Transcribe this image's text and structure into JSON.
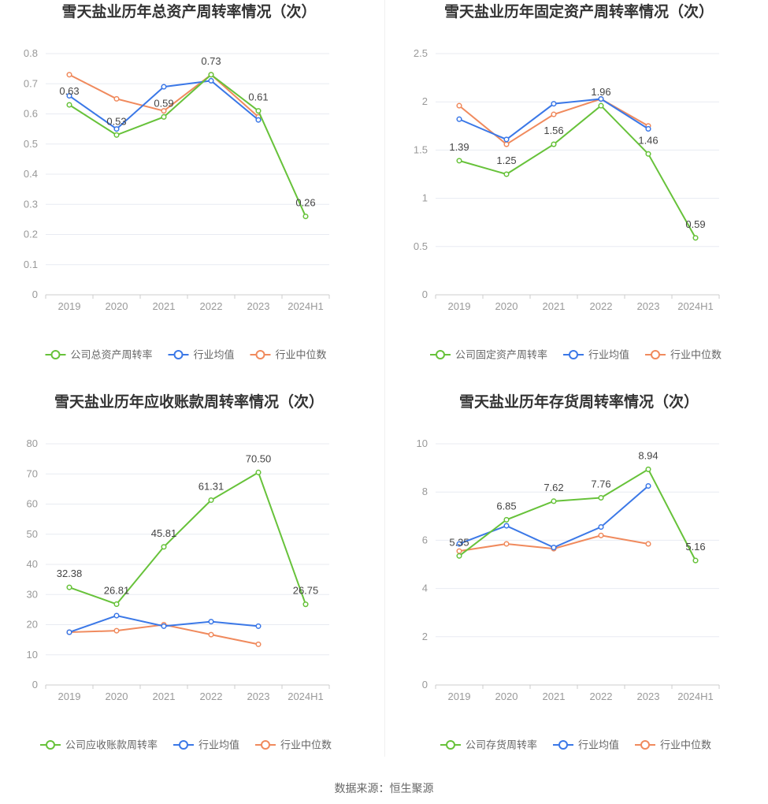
{
  "source_text": "数据来源：恒生聚源",
  "colors": {
    "company": "#67c23a",
    "avg": "#3b78e7",
    "median": "#f08a5d"
  },
  "chart_data": [
    {
      "type": "line",
      "title": "雪天盐业历年总资产周转率情况（次）",
      "categories": [
        "2019",
        "2020",
        "2021",
        "2022",
        "2023",
        "2024H1"
      ],
      "ylim": [
        0,
        0.8
      ],
      "yticks": [
        "0",
        "0.1",
        "0.2",
        "0.3",
        "0.4",
        "0.5",
        "0.6",
        "0.7",
        "0.8"
      ],
      "series": [
        {
          "name": "公司总资产周转率",
          "values": [
            0.63,
            0.53,
            0.59,
            0.73,
            0.61,
            0.26
          ],
          "labels": [
            "0.63",
            "0.53",
            "0.59",
            "0.73",
            "0.61",
            "0.26"
          ]
        },
        {
          "name": "行业均值",
          "values": [
            0.66,
            0.55,
            0.69,
            0.71,
            0.58,
            null
          ]
        },
        {
          "name": "行业中位数",
          "values": [
            0.73,
            0.65,
            0.61,
            0.73,
            0.59,
            null
          ]
        }
      ]
    },
    {
      "type": "line",
      "title": "雪天盐业历年固定资产周转率情况（次）",
      "categories": [
        "2019",
        "2020",
        "2021",
        "2022",
        "2023",
        "2024H1"
      ],
      "ylim": [
        0,
        2.5
      ],
      "yticks": [
        "0",
        "0.5",
        "1",
        "1.5",
        "2",
        "2.5"
      ],
      "series": [
        {
          "name": "公司固定资产周转率",
          "values": [
            1.39,
            1.25,
            1.56,
            1.96,
            1.46,
            0.59
          ],
          "labels": [
            "1.39",
            "1.25",
            "1.56",
            "1.96",
            "1.46",
            "0.59"
          ]
        },
        {
          "name": "行业均值",
          "values": [
            1.82,
            1.61,
            1.98,
            2.03,
            1.72,
            null
          ]
        },
        {
          "name": "行业中位数",
          "values": [
            1.96,
            1.56,
            1.87,
            2.03,
            1.75,
            null
          ]
        }
      ]
    },
    {
      "type": "line",
      "title": "雪天盐业历年应收账款周转率情况（次）",
      "categories": [
        "2019",
        "2020",
        "2021",
        "2022",
        "2023",
        "2024H1"
      ],
      "ylim": [
        0,
        80
      ],
      "yticks": [
        "0",
        "10",
        "20",
        "30",
        "40",
        "50",
        "60",
        "70",
        "80"
      ],
      "series": [
        {
          "name": "公司应收账款周转率",
          "values": [
            32.38,
            26.81,
            45.81,
            61.31,
            70.5,
            26.75
          ],
          "labels": [
            "32.38",
            "26.81",
            "45.81",
            "61.31",
            "70.50",
            "26.75"
          ]
        },
        {
          "name": "行业均值",
          "values": [
            17.5,
            23.0,
            19.5,
            21.0,
            19.5,
            null
          ]
        },
        {
          "name": "行业中位数",
          "values": [
            17.5,
            18.0,
            20.0,
            16.7,
            13.5,
            null
          ]
        }
      ]
    },
    {
      "type": "line",
      "title": "雪天盐业历年存货周转率情况（次）",
      "categories": [
        "2019",
        "2020",
        "2021",
        "2022",
        "2023",
        "2024H1"
      ],
      "ylim": [
        0,
        10
      ],
      "yticks": [
        "0",
        "2",
        "4",
        "6",
        "8",
        "10"
      ],
      "series": [
        {
          "name": "公司存货周转率",
          "values": [
            5.35,
            6.85,
            7.62,
            7.76,
            8.94,
            5.16
          ],
          "labels": [
            "5.35",
            "6.85",
            "7.62",
            "7.76",
            "8.94",
            "5.16"
          ]
        },
        {
          "name": "行业均值",
          "values": [
            5.85,
            6.6,
            5.7,
            6.55,
            8.25,
            null
          ]
        },
        {
          "name": "行业中位数",
          "values": [
            5.55,
            5.85,
            5.65,
            6.2,
            5.85,
            null
          ]
        }
      ]
    }
  ]
}
